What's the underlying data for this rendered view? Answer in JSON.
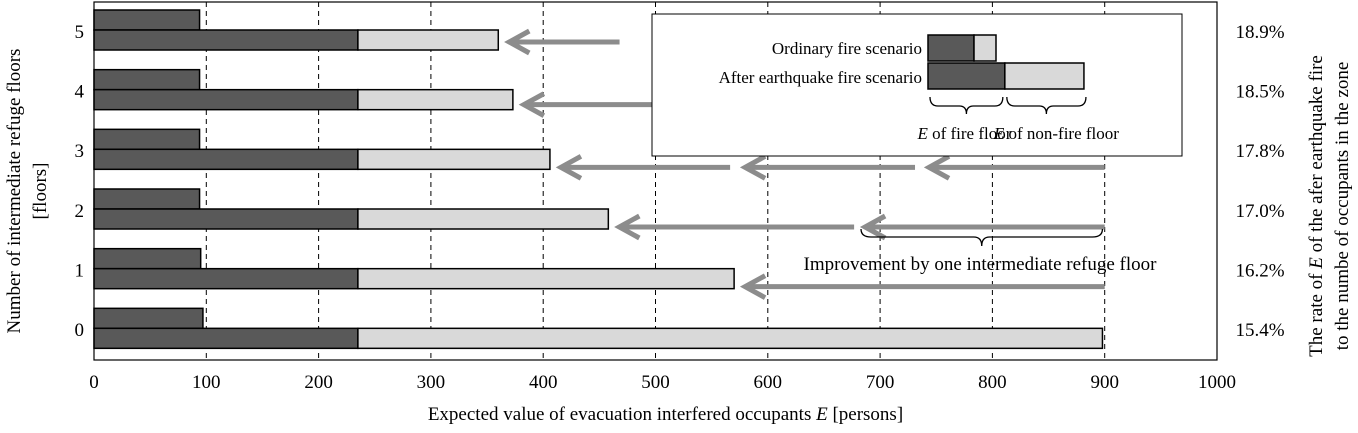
{
  "chart_data": {
    "type": "bar",
    "orientation": "horizontal",
    "categories": [
      "5",
      "4",
      "3",
      "2",
      "1",
      "0"
    ],
    "series": [
      {
        "name": "Ordinary fire scenario",
        "fire_floor": [
          94,
          94,
          94,
          94,
          95,
          97
        ],
        "non_fire_floor": [
          0,
          0,
          0,
          0,
          0,
          0
        ]
      },
      {
        "name": "After earthquake fire scenario",
        "fire_floor": [
          235,
          235,
          235,
          235,
          235,
          235
        ],
        "non_fire_floor": [
          125,
          138,
          171,
          223,
          335,
          663
        ]
      }
    ],
    "right_labels": [
      "18.9%",
      "18.5%",
      "17.8%",
      "17.0%",
      "16.2%",
      "15.4%"
    ],
    "xlabel_prefix": "Expected value of evacuation interfered occupants ",
    "xlabel_var": "E",
    "xlabel_suffix": " [persons]",
    "ylabel_line1": "Number of intermediate refuge floors",
    "ylabel_line2": "[floors]",
    "y2label_line1_prefix": "The rate of ",
    "y2label_line1_var": "E",
    "y2label_line1_suffix": " of the afer earthquake fire",
    "y2label_line2": "to the numbe of  occupants in the zone",
    "xticks": [
      0,
      100,
      200,
      300,
      400,
      500,
      600,
      700,
      800,
      900,
      1000
    ],
    "xlim": [
      0,
      1000
    ],
    "grid": "vertical dashed",
    "legend": {
      "position": "top-right",
      "fire_floor_var": "E",
      "fire_floor_suffix": " of fire floor",
      "non_fire_floor_var": "E",
      "non_fire_floor_suffix": " of non-fire floor",
      "sample_ordinary": [
        50,
        20
      ],
      "sample_after": [
        68,
        70
      ]
    },
    "annotation": "Improvement by one intermediate refuge floor",
    "colors": {
      "fire_floor": "#595959",
      "non_fire_floor": "#d9d9d9",
      "arrow": "#8c8c8c",
      "outline": "#000000"
    }
  }
}
